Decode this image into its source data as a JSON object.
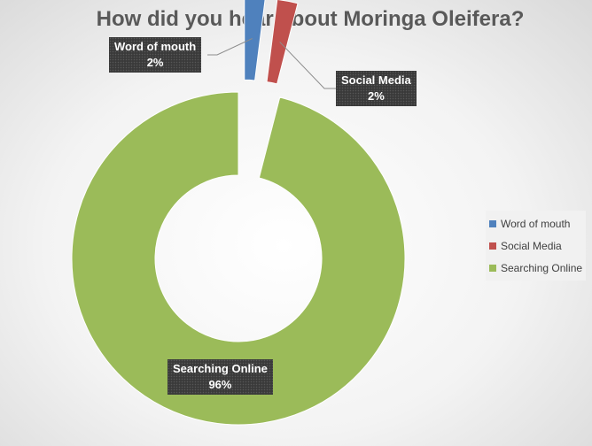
{
  "chart_data": {
    "type": "pie",
    "title": "How did you hear about Moringa Oleifera?",
    "categories": [
      "Word of mouth",
      "Social Media",
      "Searching Online"
    ],
    "values": [
      2,
      2,
      96
    ],
    "value_labels": [
      "2%",
      "2%",
      "96%"
    ],
    "colors": [
      "#4f81bd",
      "#c0504d",
      "#9bbb59"
    ],
    "legend_position": "right",
    "exploded_slices": [
      "Word of mouth",
      "Social Media"
    ]
  }
}
